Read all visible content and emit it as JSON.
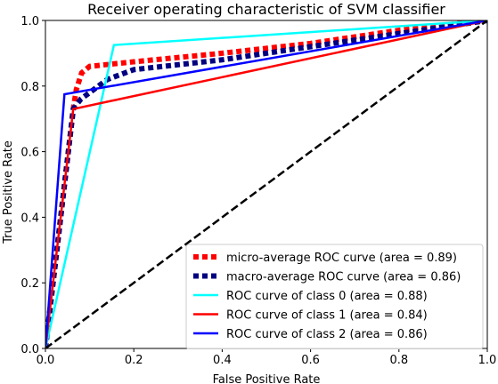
{
  "chart_data": {
    "type": "line",
    "title": "Receiver operating characteristic of SVM classifier",
    "xlabel": "False Positive Rate",
    "ylabel": "True Positive Rate",
    "xlim": [
      0.0,
      1.0
    ],
    "ylim": [
      0.0,
      1.0
    ],
    "xticks": [
      "0.0",
      "0.2",
      "0.4",
      "0.6",
      "0.8",
      "1.0"
    ],
    "yticks": [
      "0.0",
      "0.2",
      "0.4",
      "0.6",
      "0.8",
      "1.0"
    ],
    "xtick_values": [
      0.0,
      0.2,
      0.4,
      0.6,
      0.8,
      1.0
    ],
    "ytick_values": [
      0.0,
      0.2,
      0.4,
      0.6,
      0.8,
      1.0
    ],
    "grid": false,
    "legend_position": "lower-right",
    "series": [
      {
        "name": "micro-average ROC curve (area = 0.89)",
        "color": "#ff0000",
        "style": "dotted",
        "x": [
          0.0,
          0.063,
          0.07,
          0.082,
          0.1,
          0.2,
          0.4,
          0.6,
          0.8,
          1.0
        ],
        "y": [
          0.0,
          0.73,
          0.79,
          0.84,
          0.86,
          0.874,
          0.9,
          0.93,
          0.97,
          1.0
        ]
      },
      {
        "name": "macro-average ROC curve (area = 0.86)",
        "color": "#000080",
        "style": "dotted",
        "x": [
          0.0,
          0.063,
          0.08,
          0.1,
          0.14,
          0.2,
          0.4,
          0.6,
          0.8,
          1.0
        ],
        "y": [
          0.0,
          0.73,
          0.76,
          0.78,
          0.82,
          0.85,
          0.88,
          0.92,
          0.96,
          1.0
        ]
      },
      {
        "name": "ROC curve of class 0 (area = 0.88)",
        "color": "#00ffff",
        "style": "solid",
        "x": [
          0.0,
          0.155,
          1.0
        ],
        "y": [
          0.0,
          0.925,
          1.0
        ]
      },
      {
        "name": "ROC curve of class 1 (area = 0.84)",
        "color": "#ff0000",
        "style": "solid",
        "x": [
          0.0,
          0.063,
          1.0
        ],
        "y": [
          0.0,
          0.73,
          1.0
        ]
      },
      {
        "name": "ROC curve of class 2 (area = 0.86)",
        "color": "#0000ff",
        "style": "solid",
        "x": [
          0.0,
          0.043,
          1.0
        ],
        "y": [
          0.0,
          0.775,
          1.0
        ]
      },
      {
        "name": "chance",
        "color": "#000000",
        "style": "dashed",
        "x": [
          0.0,
          1.0
        ],
        "y": [
          0.0,
          1.0
        ],
        "in_legend": false
      }
    ]
  }
}
